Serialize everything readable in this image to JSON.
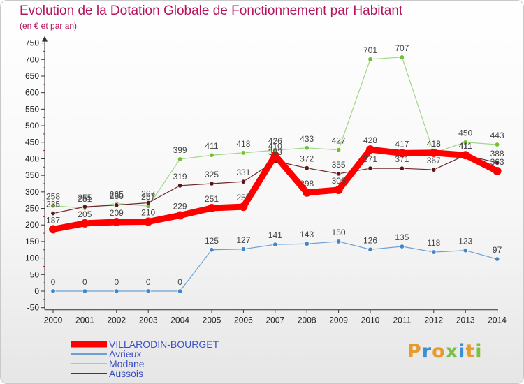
{
  "title": "Evolution de la Dotation Globale de Fonctionnement par Habitant",
  "subtitle": "(en € et par an)",
  "logo": {
    "text": "Proxiti"
  },
  "chart_data": {
    "type": "line",
    "x": [
      "2000",
      "2001",
      "2002",
      "2003",
      "2004",
      "2005",
      "2006",
      "2007",
      "2008",
      "2009",
      "2010",
      "2011",
      "2012",
      "2013",
      "2014"
    ],
    "ylim": [
      -50,
      750
    ],
    "yticks": [
      "-50",
      "0",
      "50",
      "100",
      "150",
      "200",
      "250",
      "300",
      "350",
      "400",
      "450",
      "500",
      "550",
      "600",
      "650",
      "700",
      "750"
    ],
    "grid": false,
    "legend_position": "bottom-left",
    "series": [
      {
        "name": "VILLARODIN-BOURGET",
        "color": "#ff0000",
        "marker_color": "#ff0000",
        "values": [
          187,
          205,
          209,
          210,
          229,
          251,
          255,
          410,
          298,
          306,
          428,
          417,
          418,
          411,
          363
        ],
        "labels": [
          "187",
          "205",
          "209",
          "210",
          "229",
          "251",
          "255",
          "410",
          "298",
          "306",
          "428",
          "417",
          "418",
          "411",
          "363"
        ]
      },
      {
        "name": "Avrieux",
        "color": "#6ea0d4",
        "marker_color": "#3f87c9",
        "values": [
          0,
          0,
          0,
          0,
          0,
          125,
          127,
          141,
          143,
          150,
          126,
          135,
          118,
          123,
          97
        ],
        "labels": [
          "0",
          "0",
          "0",
          "0",
          "0",
          "125",
          "127",
          "141",
          "143",
          "150",
          "126",
          "135",
          "118",
          "123",
          "97"
        ]
      },
      {
        "name": "Modane",
        "color": "#9ed787",
        "marker_color": "#72c02c",
        "values": [
          258,
          251,
          265,
          257,
          399,
          411,
          418,
          426,
          433,
          427,
          701,
          707,
          418,
          450,
          443
        ],
        "labels": [
          "258",
          "251",
          "265",
          "257",
          "399",
          "411",
          "418",
          "426",
          "433",
          "427",
          "701",
          "707",
          "418",
          "450",
          "443"
        ]
      },
      {
        "name": "Aussois",
        "color": "#6d2a2a",
        "marker_color": "#5a1818",
        "values": [
          235,
          255,
          260,
          267,
          319,
          325,
          331,
          393,
          372,
          355,
          371,
          371,
          367,
          411,
          388
        ],
        "labels": [
          "235",
          "255",
          "260",
          "267",
          "319",
          "325",
          "331",
          "393",
          "372",
          "355",
          "371",
          "371",
          "367",
          "411",
          "388"
        ]
      }
    ]
  }
}
